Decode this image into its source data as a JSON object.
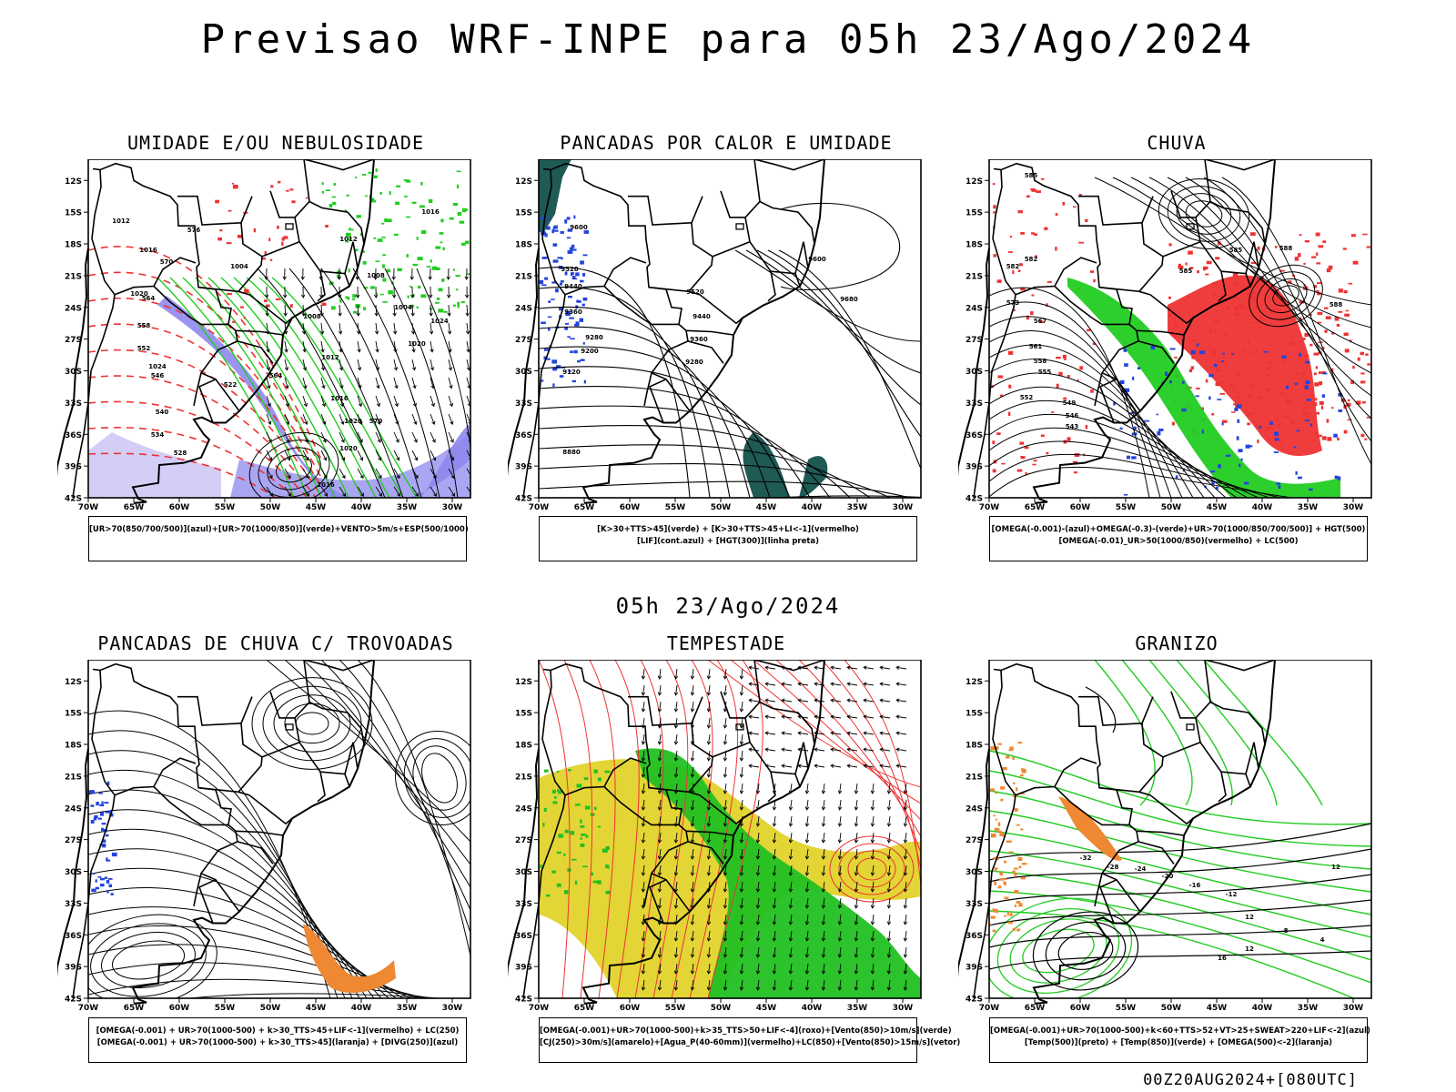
{
  "title": "Previsao WRF-INPE  para 05h 23/Ago/2024",
  "mid_title": "05h 23/Ago/2024",
  "footer": "00Z20AUG2024+[080UTC]",
  "axes": {
    "lat_labels": [
      "12S",
      "15S",
      "18S",
      "21S",
      "24S",
      "27S",
      "30S",
      "33S",
      "36S",
      "39S",
      "42S"
    ],
    "lon_labels": [
      "70W",
      "65W",
      "60W",
      "55W",
      "50W",
      "45W",
      "40W",
      "35W",
      "30W"
    ]
  },
  "panels": [
    {
      "title": "UMIDADE E/OU NEBULOSIDADE",
      "legend": [
        "[UR>70(850/700/500)](azul)+[UR>70(1000/850)](verde)+VENTO>5m/s+ESP(500/1000)"
      ],
      "contour_labels": [
        "1012",
        "1016",
        "1020",
        "1024",
        "1004",
        "1008",
        "1012",
        "1016",
        "1020",
        "1016",
        "1012",
        "1008",
        "1004",
        "1020",
        "1016",
        "1024",
        "1020",
        "576",
        "570",
        "564",
        "558",
        "552",
        "546",
        "540",
        "534",
        "528",
        "522",
        "564",
        "570"
      ]
    },
    {
      "title": "PANCADAS POR CALOR E UMIDADE",
      "legend": [
        "[K>30+TTS>45](verde) + [K>30+TTS>45+LI<-1](vermelho)",
        "[LIF](cont.azul) + [HGT(300)](linha preta)"
      ],
      "contour_labels": [
        "9600",
        "9520",
        "9440",
        "9360",
        "9280",
        "9200",
        "9120",
        "8880",
        "9680",
        "9600",
        "9520",
        "9440",
        "9360",
        "9280"
      ]
    },
    {
      "title": "CHUVA",
      "legend": [
        "[OMEGA(-0.001)-(azul)+OMEGA(-0.3)-(verde)+UR>70(1000/850/700/500)] + HGT(500)",
        "[OMEGA(-0.01)_UR>50(1000/850)(vermelho) + LC(500)"
      ],
      "contour_labels": [
        "585",
        "585",
        "582",
        "588",
        "588",
        "585",
        "582",
        "573",
        "567",
        "561",
        "558",
        "555",
        "552",
        "549",
        "546",
        "543"
      ]
    },
    {
      "title": "PANCADAS DE CHUVA C/ TROVOADAS",
      "legend": [
        "[OMEGA(-0.001) + UR>70(1000-500) + k>30_TTS>45+LIF<-1](vermelho) + LC(250)",
        "[OMEGA(-0.001) + UR>70(1000-500) + k>30_TTS>45](laranja) + [DIVG(250)](azul)"
      ],
      "contour_labels": []
    },
    {
      "title": "TEMPESTADE",
      "legend": [
        "[OMEGA(-0.001)+UR>70(1000-500)+k>35_TTS>50+LIF<-4](roxo)+[Vento(850)>10m/s](verde)",
        "[CJ(250)>30m/s](amarelo)+[Agua_P(40-60mm)](vermelho)+LC(850)+[Vento(850)>15m/s](vetor)"
      ],
      "contour_labels": []
    },
    {
      "title": "GRANIZO",
      "legend": [
        "[OMEGA(-0.001)+UR>70(1000-500)+k<60+TTS>52+VT>25+SWEAT>220+LIF<-2](azul)",
        "[Temp(500)](preto) + [Temp(850)](verde) + [OMEGA(500)<-2](laranja)"
      ],
      "contour_labels": [
        "-12",
        "-16",
        "-20",
        "-24",
        "-28",
        "-32",
        "12",
        "12",
        "4",
        "8",
        "12",
        "16"
      ]
    }
  ],
  "colors": {
    "blue": "#2244dd",
    "green": "#22cc22",
    "red": "#ee3333",
    "orange": "#ee8833",
    "yellow": "#e0d020",
    "purple": "#8f88ee",
    "teal": "#1f5a55"
  }
}
